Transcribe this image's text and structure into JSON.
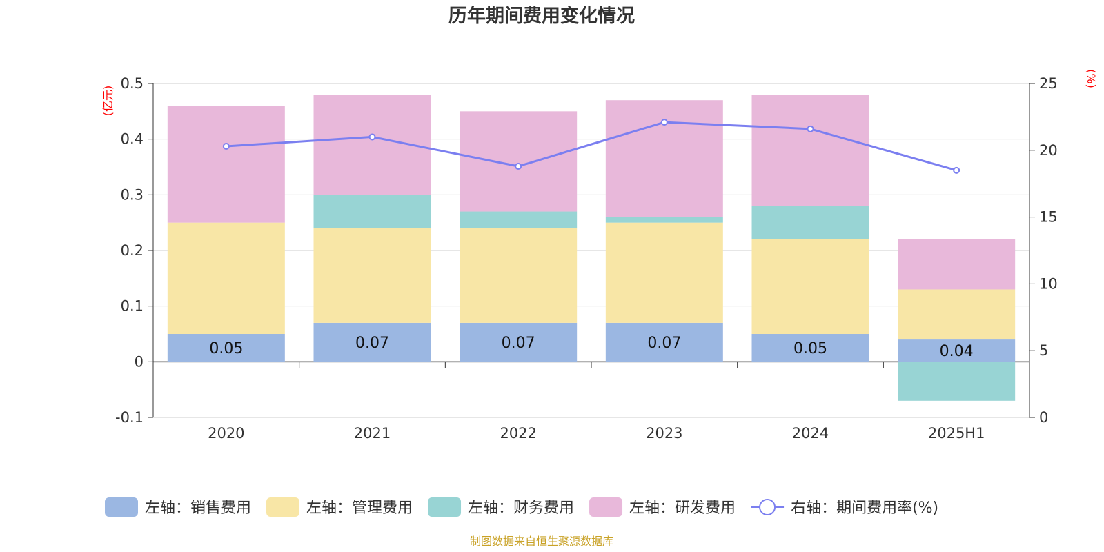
{
  "chart_data": {
    "type": "bar",
    "title": "历年期间费用变化情况",
    "left_axis_unit": "(亿元)",
    "right_axis_unit": "(%)",
    "categories": [
      "2020",
      "2021",
      "2022",
      "2023",
      "2024",
      "2025H1"
    ],
    "left_ylim": [
      -0.1,
      0.5
    ],
    "left_ticks": [
      "-0.1",
      "0",
      "0.1",
      "0.2",
      "0.3",
      "0.4",
      "0.5"
    ],
    "right_ylim": [
      0,
      25
    ],
    "right_ticks": [
      "0",
      "5",
      "10",
      "15",
      "20",
      "25"
    ],
    "series": [
      {
        "name": "左轴：销售费用",
        "type": "bar",
        "color": "#9bb7e2",
        "values": [
          0.05,
          0.07,
          0.07,
          0.07,
          0.05,
          0.04
        ],
        "labels": [
          "0.05",
          "0.07",
          "0.07",
          "0.07",
          "0.05",
          "0.04"
        ]
      },
      {
        "name": "左轴：管理费用",
        "type": "bar",
        "color": "#f8e6a6",
        "values": [
          0.2,
          0.17,
          0.17,
          0.18,
          0.17,
          0.09
        ]
      },
      {
        "name": "左轴：财务费用",
        "type": "bar",
        "color": "#98d4d4",
        "values": [
          0.0,
          0.06,
          0.03,
          0.01,
          0.06,
          -0.07
        ]
      },
      {
        "name": "左轴：研发费用",
        "type": "bar",
        "color": "#e8b8da",
        "values": [
          0.21,
          0.18,
          0.18,
          0.21,
          0.2,
          0.09
        ]
      },
      {
        "name": "右轴：期间费用率(%)",
        "type": "line",
        "axis": "right",
        "color": "#7b7ff0",
        "values": [
          20.3,
          21.0,
          18.8,
          22.1,
          21.6,
          18.5
        ]
      }
    ],
    "grid": true,
    "legend_position": "bottom"
  },
  "source": "制图数据来自恒生聚源数据库"
}
